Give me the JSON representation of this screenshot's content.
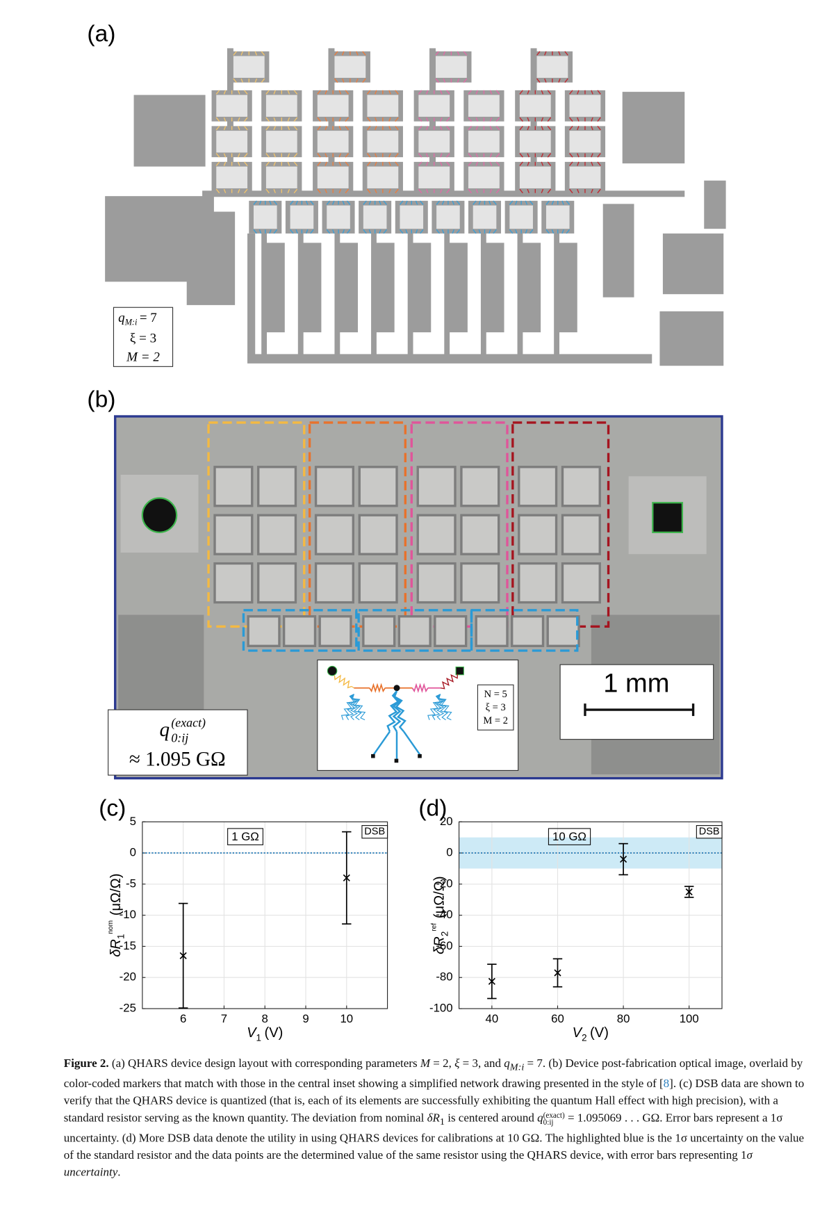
{
  "panel_a": {
    "label": "(a)",
    "params": {
      "q": "q",
      "q_sub": "M:i",
      "q_eq": "= 7",
      "xi": "ξ = 3",
      "M": "M = 2"
    }
  },
  "panel_b": {
    "label": "(b)",
    "resistance": {
      "q": "q",
      "sup": "(exact)",
      "sub": "0:ij",
      "value": "≈ 1.095 GΩ"
    },
    "inset": [
      "N = 5",
      "ξ = 3",
      "M = 2"
    ],
    "scale_bar": "1 mm"
  },
  "chart_data": [
    {
      "type": "scatter",
      "label": "(c)",
      "annotation": "1 GΩ",
      "tag": "DSB",
      "ylabel": {
        "symbol": "δR",
        "sub": "1",
        "sup": "nom",
        "unit": "(μΩ/Ω)"
      },
      "xlabel": {
        "symbol": "V",
        "sub": "1",
        "unit": "(V)"
      },
      "x": [
        6,
        10
      ],
      "values": [
        -16.5,
        -4
      ],
      "errors": [
        8.4,
        7.4
      ],
      "xlim": [
        5,
        11
      ],
      "xticks": [
        6,
        7,
        8,
        9,
        10
      ],
      "ylim": [
        -25,
        5
      ],
      "yticks": [
        -25,
        -20,
        -15,
        -10,
        -5,
        0,
        5
      ],
      "grid": true,
      "hline": 0,
      "color": "#000000",
      "hline_color": "#1f77b4"
    },
    {
      "type": "scatter",
      "label": "(d)",
      "annotation": "10 GΩ",
      "tag": "DSB",
      "ylabel": {
        "symbol": "δR",
        "sub": "2",
        "sup": "ref",
        "unit": "(μΩ/Ω)"
      },
      "xlabel": {
        "symbol": "V",
        "sub": "2",
        "unit": "(V)"
      },
      "x": [
        40,
        60,
        80,
        100
      ],
      "values": [
        -82.5,
        -77,
        -4,
        -25
      ],
      "errors": [
        11,
        9,
        10,
        3.5
      ],
      "xlim": [
        30,
        110
      ],
      "xticks": [
        40,
        60,
        80,
        100
      ],
      "ylim": [
        -100,
        20
      ],
      "yticks": [
        -100,
        -80,
        -60,
        -40,
        -20,
        0,
        20
      ],
      "grid": true,
      "hline": 0,
      "band": [
        -10,
        10
      ],
      "band_color": "#cdeaf6",
      "color": "#000000",
      "hline_color": "#1f77b4"
    }
  ],
  "caption": [
    "Figure 2.",
    " (a) QHARS device design layout with corresponding parameters ",
    "M",
    " = 2, ",
    "ξ",
    " = 3, and ",
    "q",
    "M:i",
    " = 7. (b) Device post-fabrication optical image, overlaid by color-coded markers that match with those in the central inset showing a simplified network drawing presented in the style of [",
    "8",
    "]. (c) DSB data are shown to verify that the QHARS device is quantized (that is, each of its elements are successfully exhibiting the quantum Hall effect with high precision), with a standard resistor serving as the known quantity. The deviation from nominal ",
    "δR",
    "1",
    " is centered around ",
    "q",
    "(exact)",
    "0:ij",
    " = 1.095069 . . . GΩ. Error bars represent a 1σ uncertainty. (d) More DSB data denote the utility in using QHARS devices for calibrations at 10 GΩ. The highlighted blue is the 1σ uncertainty on the value of the standard resistor and the data points are the determined value of the same resistor using the QHARS device, with error bars representing 1",
    "σ uncertainty",
    "."
  ]
}
